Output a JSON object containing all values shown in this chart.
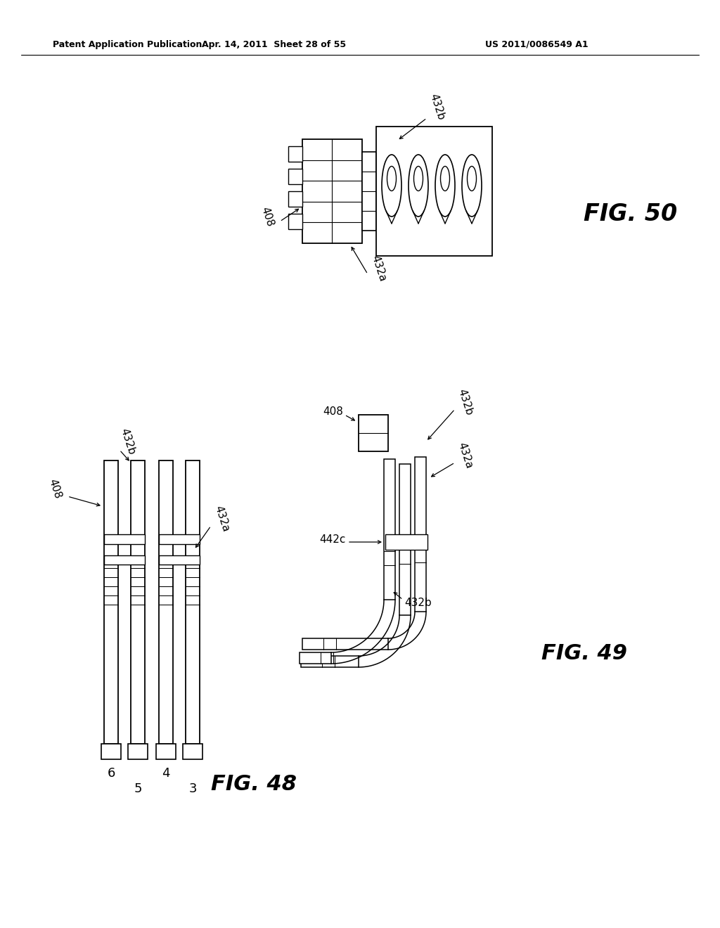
{
  "bg_color": "#ffffff",
  "header1": "Patent Application Publication",
  "header2": "Apr. 14, 2011  Sheet 28 of 55",
  "header3": "US 2011/0086549 A1",
  "fig48": "FIG. 48",
  "fig49": "FIG. 49",
  "fig50": "FIG. 50"
}
